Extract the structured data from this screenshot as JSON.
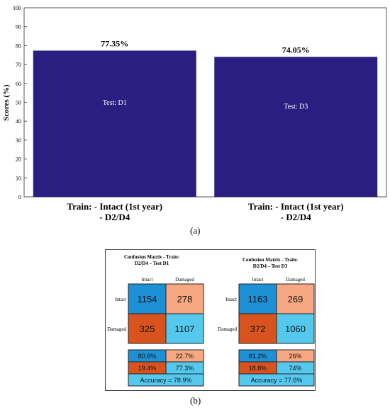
{
  "figure_labels": {
    "a": "(a)",
    "b": "(b)"
  },
  "chart_data": [
    {
      "type": "bar",
      "categories": [
        [
          "Train: - Intact (1st year)",
          "- D2/D4"
        ],
        [
          "Train: - Intact (1st year)",
          "- D2/D4"
        ]
      ],
      "values": [
        77.35,
        74.05
      ],
      "value_labels": [
        "77.35%",
        "74.05%"
      ],
      "bar_labels": [
        "Test: D1",
        "Test: D3"
      ],
      "ylabel": "Scores (%)",
      "ylim": [
        0,
        100
      ],
      "yticks": [
        0,
        10,
        20,
        30,
        40,
        50,
        60,
        70,
        80,
        90,
        100
      ],
      "bar_color": "#2a1f80",
      "grid": false
    },
    {
      "type": "table",
      "matrices": [
        {
          "title_lines": [
            "Confusion Matrix - Train:",
            "D2/D4 – Test D1"
          ],
          "col_headers": [
            "Intact",
            "Damaged"
          ],
          "row_headers": [
            "Intact",
            "Damaged"
          ],
          "cells": [
            [
              1154,
              278
            ],
            [
              325,
              1107
            ]
          ],
          "pct_rows": [
            [
              "80.6%",
              "22.7%"
            ],
            [
              "19.4%",
              "77.3%"
            ]
          ],
          "accuracy": "Accuracy = 78.9%"
        },
        {
          "title_lines": [
            "Confusion Matrix - Train:",
            "D2/D4 – Test D3"
          ],
          "col_headers": [
            "Intact",
            "Damaged"
          ],
          "row_headers": [
            "Intact",
            "Damaged"
          ],
          "cells": [
            [
              1163,
              269
            ],
            [
              372,
              1060
            ]
          ],
          "pct_rows": [
            [
              "81.2%",
              "26%"
            ],
            [
              "18.8%",
              "74%"
            ]
          ],
          "accuracy": "Accuracy = 77.6%"
        }
      ],
      "colors": {
        "tp": "#1e90d6",
        "fp": "#f7a882",
        "fn": "#d9531e",
        "tn": "#55c8ee",
        "acc": "#55c8ee"
      }
    }
  ]
}
